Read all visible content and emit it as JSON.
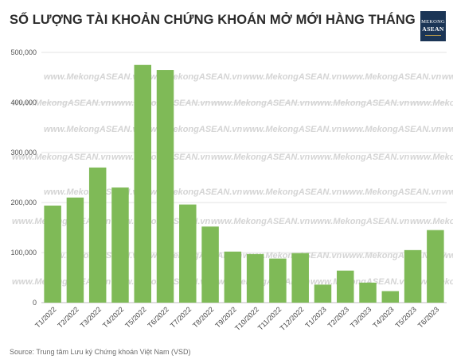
{
  "title": "SỐ LƯỢNG TÀI KHOẢN CHỨNG KHOÁN MỞ MỚI HÀNG THÁNG",
  "logo": {
    "line1": "MEKONG",
    "line2": "ASEAN"
  },
  "source": "Source: Trung tâm Lưu ký Chứng khoán Việt Nam (VSD)",
  "watermark": "www.MekongASEAN.vn",
  "colors": {
    "bar": "#7fba57",
    "grid": "#e3e3e3",
    "axis": "#bdbdbd",
    "logo_bg": "#1b3556"
  },
  "chart_data": {
    "type": "bar",
    "title": "SỐ LƯỢNG TÀI KHOẢN CHỨNG KHOÁN MỞ MỚI HÀNG THÁNG",
    "categories": [
      "T1/2022",
      "T2/2022",
      "T3/2022",
      "T4/2022",
      "T5/2022",
      "T6/2022",
      "T7/2022",
      "T8/2022",
      "T9/2022",
      "T10/2022",
      "T11/2022",
      "T12/2022",
      "T1/2023",
      "T2/2023",
      "T3/2023",
      "T4/2023",
      "T5/2023",
      "T6/2023"
    ],
    "values": [
      194000,
      210000,
      270000,
      230000,
      475000,
      465000,
      196000,
      152000,
      102000,
      97000,
      88000,
      99000,
      36000,
      64000,
      40000,
      23000,
      105000,
      145000
    ],
    "ylim": [
      0,
      500000
    ],
    "yticks": [
      0,
      100000,
      200000,
      300000,
      400000,
      500000
    ],
    "ytick_labels": [
      "0",
      "100,000",
      "200,000",
      "300,000",
      "400,000",
      "500,000"
    ],
    "xlabel": "",
    "ylabel": "",
    "grid": true,
    "legend": "none"
  }
}
